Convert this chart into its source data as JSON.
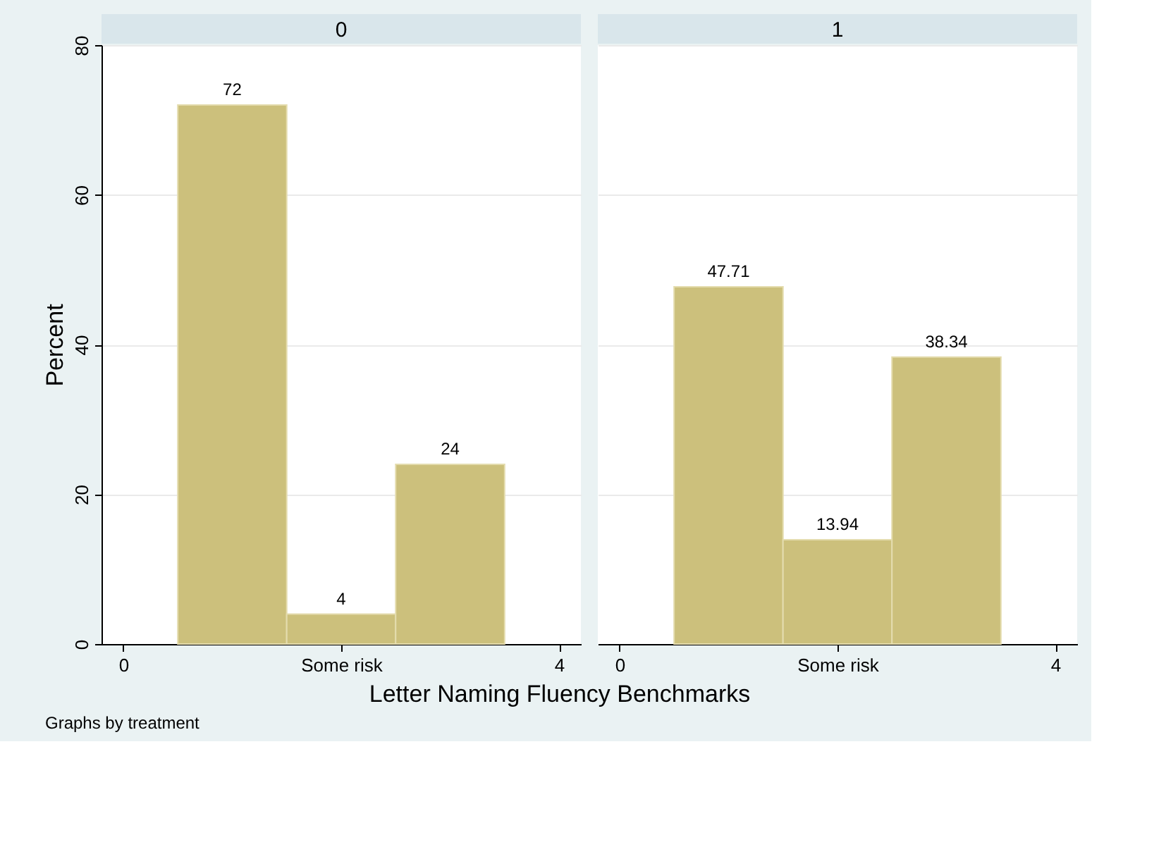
{
  "chart_data": [
    {
      "type": "histogram",
      "title": "0",
      "xlabel": "Letter Naming Fluency Benchmarks",
      "ylabel": "Percent",
      "annotations": [
        "Graphs by treatment"
      ],
      "bins": [
        0.5,
        1.5,
        2.5,
        3.5
      ],
      "values": [
        72,
        4,
        24
      ],
      "color": "#ccc07c",
      "xlim": [
        -0.2,
        4.2
      ],
      "xticks": [
        0,
        {
          "value": 2,
          "label": "Some risk"
        },
        4
      ],
      "ylim": [
        0,
        80
      ],
      "yticks": [
        0,
        20,
        40,
        60,
        80
      ],
      "grid": "y",
      "data_labels": true
    },
    {
      "type": "histogram",
      "title": "1",
      "bins": [
        0.5,
        1.5,
        2.5,
        3.5
      ],
      "values": [
        47.71,
        13.94,
        38.34
      ],
      "color": "#ccc07c",
      "xlim": [
        -0.2,
        4.2
      ],
      "xticks": [
        0,
        {
          "value": 2,
          "label": "Some risk"
        },
        4
      ],
      "ylim": [
        0,
        80
      ],
      "yticks": [
        0,
        20,
        40,
        60,
        80
      ],
      "grid": "y",
      "data_labels": true,
      "tick_labels": "x"
    }
  ]
}
